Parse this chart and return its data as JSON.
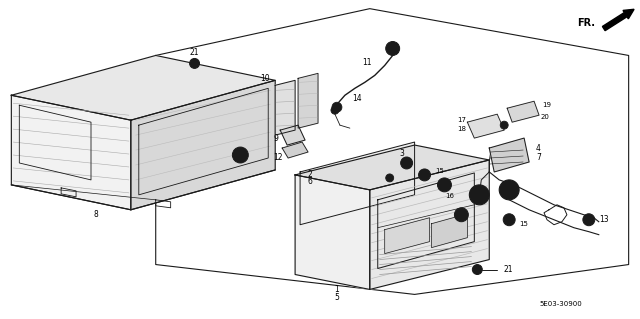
{
  "background_color": "#ffffff",
  "line_color": "#1a1a1a",
  "text_color": "#000000",
  "diagram_code": "5E03-30900",
  "fr_label": "FR.",
  "fig_width": 6.4,
  "fig_height": 3.19,
  "dpi": 100
}
